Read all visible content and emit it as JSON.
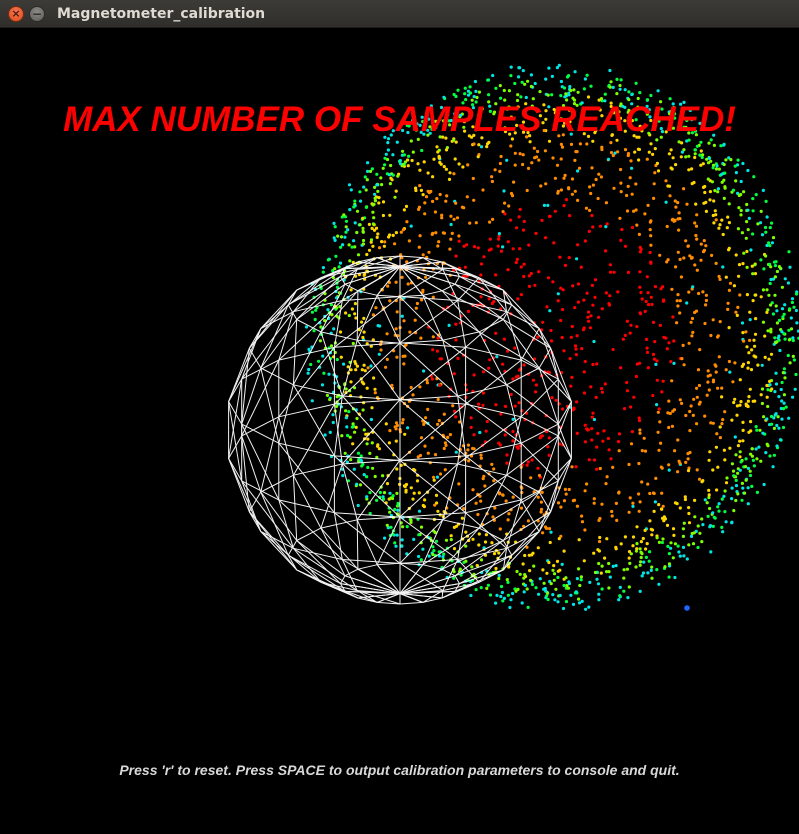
{
  "window": {
    "title": "Magnetometer_calibration",
    "close_glyph": "×",
    "minimize_glyph": "−"
  },
  "overlay": {
    "status_message": "MAX NUMBER OF SAMPLES REACHED!",
    "status_color": "#ff0000",
    "instructions": "Press 'r' to reset. Press SPACE to output calibration parameters to console and quit."
  },
  "scene": {
    "background": "#000000",
    "wireframe_sphere_color": "#ffffff",
    "point_cloud_colormap": [
      "#ff0000",
      "#ff8c00",
      "#ffd700",
      "#7fff00",
      "#00ff40",
      "#00e5e5",
      "#1e90ff"
    ],
    "outlier_point_color": "#1e64ff"
  }
}
